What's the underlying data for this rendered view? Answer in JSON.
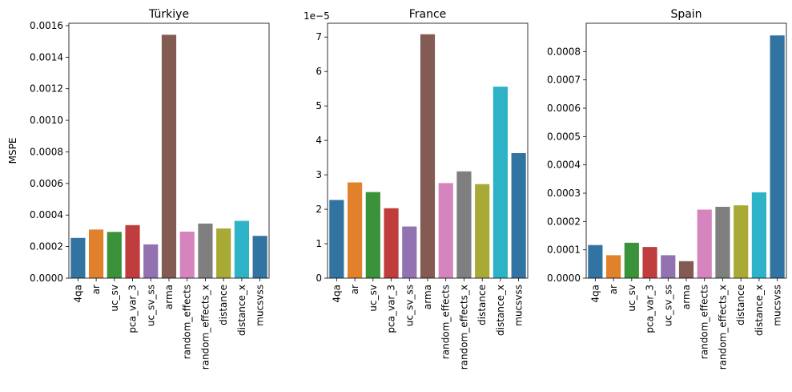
{
  "chart_data": [
    {
      "type": "bar",
      "title": "Türkiye",
      "ylabel": "MSPE",
      "xlabel": "",
      "offset_text": "",
      "categories": [
        "4qa",
        "ar",
        "uc_sv",
        "pca_var_3",
        "uc_sv_ss",
        "arma",
        "random_effects",
        "random_effects_x",
        "distance",
        "distance_x",
        "mucsvss"
      ],
      "values": [
        0.000255,
        0.000308,
        0.000293,
        0.000336,
        0.000214,
        0.001542,
        0.000295,
        0.000346,
        0.000315,
        0.000363,
        0.000268
      ],
      "ylim": [
        0,
        0.001615
      ],
      "yticks": [
        0,
        0.0002,
        0.0004,
        0.0006,
        0.0008,
        0.001,
        0.0012,
        0.0014,
        0.0016
      ],
      "ytick_labels": [
        "0.0000",
        "0.0002",
        "0.0004",
        "0.0006",
        "0.0008",
        "0.0010",
        "0.0012",
        "0.0014",
        "0.0016"
      ]
    },
    {
      "type": "bar",
      "title": "France",
      "ylabel": "",
      "xlabel": "",
      "offset_text": "1e−5",
      "categories": [
        "4qa",
        "ar",
        "uc_sv",
        "pca_var_3",
        "uc_sv_ss",
        "arma",
        "random_effects",
        "random_effects_x",
        "distance",
        "distance_x",
        "mucsvss"
      ],
      "values": [
        2.27,
        2.78,
        2.5,
        2.03,
        1.5,
        7.08,
        2.76,
        3.1,
        2.73,
        5.56,
        3.63
      ],
      "ylim": [
        0,
        7.4
      ],
      "yticks": [
        0,
        1,
        2,
        3,
        4,
        5,
        6,
        7
      ],
      "ytick_labels": [
        "0",
        "1",
        "2",
        "3",
        "4",
        "5",
        "6",
        "7"
      ]
    },
    {
      "type": "bar",
      "title": "Spain",
      "ylabel": "",
      "xlabel": "",
      "offset_text": "",
      "categories": [
        "4qa",
        "ar",
        "uc_sv",
        "pca_var_3",
        "uc_sv_ss",
        "arma",
        "random_effects",
        "random_effects_x",
        "distance",
        "distance_x",
        "mucsvss"
      ],
      "values": [
        0.000117,
        8.1e-05,
        0.000125,
        0.00011,
        8.1e-05,
        6e-05,
        0.000242,
        0.000252,
        0.000257,
        0.000303,
        0.000857
      ],
      "ylim": [
        0,
        0.0009
      ],
      "yticks": [
        0,
        0.0001,
        0.0002,
        0.0003,
        0.0004,
        0.0005,
        0.0006,
        0.0007,
        0.0008
      ],
      "ytick_labels": [
        "0.0000",
        "0.0001",
        "0.0002",
        "0.0003",
        "0.0004",
        "0.0005",
        "0.0006",
        "0.0007",
        "0.0008"
      ]
    }
  ],
  "colors": [
    "#3274a1",
    "#e1812c",
    "#3a923a",
    "#c03d3e",
    "#9372b2",
    "#845b53",
    "#d684bd",
    "#7f7f7f",
    "#a9aa35",
    "#2eb2c7",
    "#3274a1"
  ]
}
